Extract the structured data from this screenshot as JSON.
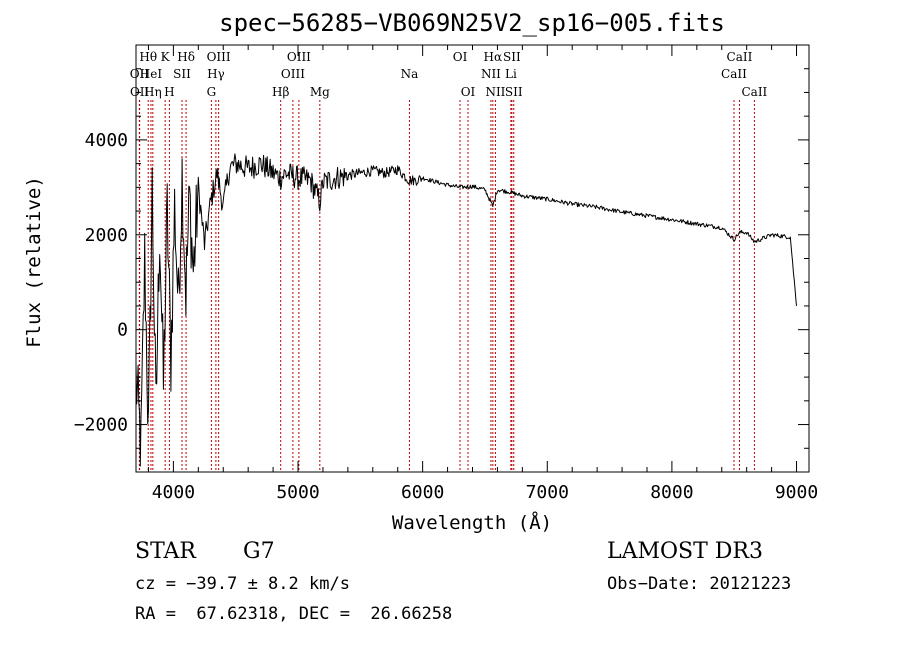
{
  "chart_data": {
    "type": "line",
    "title": "spec−56285−VB069N25V2_sp16−005.fits",
    "xlabel": "Wavelength (Å)",
    "ylabel": "Flux (relative)",
    "xlim": [
      3700,
      9100
    ],
    "ylim": [
      -3000,
      6000
    ],
    "x_ticks": [
      4000,
      5000,
      6000,
      7000,
      8000,
      9000
    ],
    "x_tick_labels": [
      "4000",
      "5000",
      "6000",
      "7000",
      "8000",
      "9000"
    ],
    "y_ticks": [
      -2000,
      0,
      2000,
      4000
    ],
    "y_tick_labels": [
      "−2000",
      "0",
      "2000",
      "4000"
    ],
    "series": [
      {
        "name": "flux",
        "x": [
          3700,
          3740,
          3770,
          3800,
          3830,
          3860,
          3890,
          3920,
          3950,
          3980,
          4010,
          4040,
          4070,
          4100,
          4130,
          4160,
          4200,
          4250,
          4300,
          4350,
          4400,
          4450,
          4500,
          4600,
          4700,
          4800,
          4861,
          4900,
          5000,
          5100,
          5175,
          5200,
          5300,
          5400,
          5500,
          5600,
          5700,
          5800,
          5890,
          5950,
          6000,
          6100,
          6200,
          6300,
          6400,
          6500,
          6563,
          6600,
          6700,
          6800,
          7000,
          7200,
          7400,
          7600,
          7800,
          8000,
          8200,
          8400,
          8498,
          8542,
          8600,
          8662,
          8800,
          8950,
          9000
        ],
        "y": [
          -1000,
          -2500,
          1500,
          -2200,
          3000,
          -1800,
          2200,
          -1200,
          2500,
          -600,
          2600,
          500,
          3300,
          800,
          2800,
          1200,
          3000,
          1800,
          2700,
          3300,
          2600,
          3400,
          3500,
          3400,
          3500,
          3300,
          3200,
          3300,
          3200,
          3150,
          2700,
          3100,
          3200,
          3250,
          3300,
          3350,
          3300,
          3380,
          3150,
          3150,
          3200,
          3120,
          3050,
          3000,
          3020,
          2950,
          2600,
          2950,
          2900,
          2820,
          2750,
          2650,
          2580,
          2480,
          2400,
          2320,
          2230,
          2150,
          1900,
          2050,
          2050,
          1850,
          2000,
          1950,
          500
        ]
      }
    ],
    "spectral_lines": [
      {
        "label": "Hθ",
        "wavelength": 3798,
        "row": 1
      },
      {
        "label": "OII",
        "wavelength": 3727,
        "row": 2
      },
      {
        "label": "OII",
        "wavelength": 3729,
        "row": 3
      },
      {
        "label": "HeI",
        "wavelength": 3820,
        "row": 2
      },
      {
        "label": "Hη",
        "wavelength": 3835,
        "row": 3
      },
      {
        "label": "K",
        "wavelength": 3934,
        "row": 1
      },
      {
        "label": "SII",
        "wavelength": 4069,
        "row": 2
      },
      {
        "label": "H",
        "wavelength": 3968,
        "row": 3
      },
      {
        "label": "Hδ",
        "wavelength": 4102,
        "row": 1
      },
      {
        "label": "OIII",
        "wavelength": 4363,
        "row": 1
      },
      {
        "label": "Hγ",
        "wavelength": 4341,
        "row": 2
      },
      {
        "label": "G",
        "wavelength": 4305,
        "row": 3
      },
      {
        "label": "OIII",
        "wavelength": 5007,
        "row": 1
      },
      {
        "label": "OIII",
        "wavelength": 4959,
        "row": 2
      },
      {
        "label": "Hβ",
        "wavelength": 4861,
        "row": 3
      },
      {
        "label": "Mg",
        "wavelength": 5175,
        "row": 3
      },
      {
        "label": "Na",
        "wavelength": 5894,
        "row": 2
      },
      {
        "label": "OI",
        "wavelength": 6300,
        "row": 1
      },
      {
        "label": "OI",
        "wavelength": 6364,
        "row": 3
      },
      {
        "label": "Hα",
        "wavelength": 6563,
        "row": 1
      },
      {
        "label": "NII",
        "wavelength": 6548,
        "row": 2
      },
      {
        "label": "NII",
        "wavelength": 6584,
        "row": 3
      },
      {
        "label": "SII",
        "wavelength": 6716,
        "row": 1
      },
      {
        "label": "Li",
        "wavelength": 6708,
        "row": 2
      },
      {
        "label": "SII",
        "wavelength": 6731,
        "row": 3
      },
      {
        "label": "CaII",
        "wavelength": 8542,
        "row": 1
      },
      {
        "label": "CaII",
        "wavelength": 8498,
        "row": 2
      },
      {
        "label": "CaII",
        "wavelength": 8662,
        "row": 3
      }
    ]
  },
  "info": {
    "class": "STAR",
    "subclass": "G7",
    "survey": "LAMOST DR3",
    "cz": "cz = −39.7 ± 8.2 km/s",
    "obs_date": "Obs−Date: 20121223",
    "coords": "RA =  67.62318, DEC =  26.66258"
  },
  "colors": {
    "spectrum": "#000000",
    "line_marker": "#c00000",
    "axis": "#000000"
  }
}
